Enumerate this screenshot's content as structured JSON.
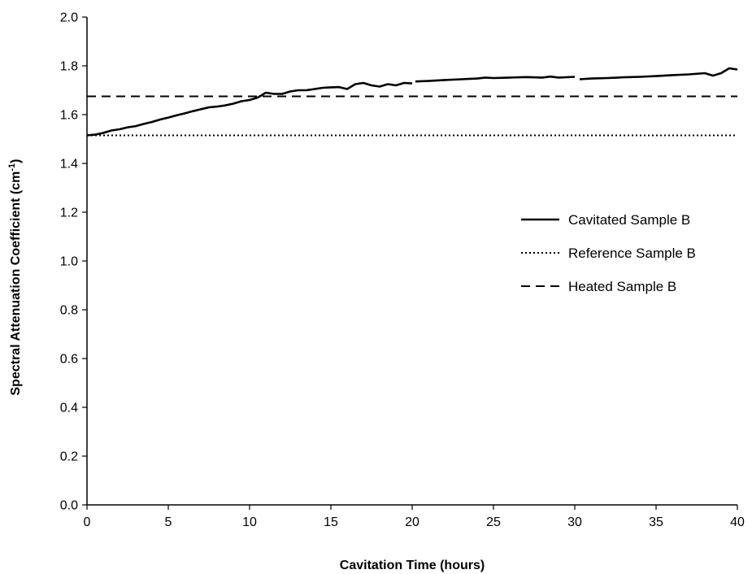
{
  "chart_data": {
    "type": "line",
    "title": "",
    "xlabel": "Cavitation Time (hours)",
    "ylabel_main": "Spectral Attenuation Coefficient (cm",
    "ylabel_sup": "-1",
    "ylabel_close": ")",
    "xlim": [
      0,
      40
    ],
    "ylim": [
      0,
      2.0
    ],
    "x_ticks": [
      "0",
      "5",
      "10",
      "15",
      "20",
      "25",
      "30",
      "35",
      "40"
    ],
    "y_ticks": [
      "0.0",
      "0.2",
      "0.4",
      "0.6",
      "0.8",
      "1.0",
      "1.2",
      "1.4",
      "1.6",
      "1.8",
      "2.0"
    ],
    "grid": false,
    "legend_position": "right",
    "series": [
      {
        "name": "Cavitated Sample B",
        "style": "solid",
        "color": "#000000",
        "segments": [
          [
            [
              0,
              1.515
            ],
            [
              0.5,
              1.518
            ],
            [
              1,
              1.525
            ],
            [
              1.5,
              1.535
            ],
            [
              2,
              1.54
            ],
            [
              2.5,
              1.548
            ],
            [
              3,
              1.553
            ],
            [
              3.5,
              1.562
            ],
            [
              4,
              1.57
            ],
            [
              4.5,
              1.58
            ],
            [
              5,
              1.588
            ],
            [
              5.5,
              1.597
            ],
            [
              6,
              1.605
            ],
            [
              6.5,
              1.614
            ],
            [
              7,
              1.622
            ],
            [
              7.5,
              1.63
            ],
            [
              8,
              1.633
            ],
            [
              8.5,
              1.638
            ],
            [
              9,
              1.645
            ],
            [
              9.5,
              1.655
            ],
            [
              10,
              1.66
            ],
            [
              10.5,
              1.67
            ],
            [
              11,
              1.69
            ],
            [
              11.5,
              1.685
            ],
            [
              12,
              1.685
            ],
            [
              12.5,
              1.695
            ],
            [
              13,
              1.7
            ],
            [
              13.5,
              1.7
            ],
            [
              14,
              1.705
            ],
            [
              14.5,
              1.71
            ],
            [
              15,
              1.712
            ],
            [
              15.5,
              1.713
            ],
            [
              16,
              1.705
            ],
            [
              16.5,
              1.725
            ],
            [
              17,
              1.73
            ],
            [
              17.5,
              1.72
            ],
            [
              18,
              1.715
            ],
            [
              18.5,
              1.725
            ],
            [
              19,
              1.72
            ],
            [
              19.5,
              1.73
            ],
            [
              20,
              1.728
            ]
          ],
          [
            [
              20.2,
              1.736
            ],
            [
              21,
              1.738
            ],
            [
              22,
              1.742
            ],
            [
              23,
              1.745
            ],
            [
              24,
              1.748
            ],
            [
              24.5,
              1.752
            ],
            [
              25,
              1.75
            ],
            [
              26,
              1.752
            ],
            [
              27,
              1.754
            ],
            [
              28,
              1.752
            ],
            [
              28.5,
              1.756
            ],
            [
              29,
              1.752
            ],
            [
              30,
              1.755
            ]
          ],
          [
            [
              30.3,
              1.745
            ],
            [
              31,
              1.748
            ],
            [
              32,
              1.75
            ],
            [
              33,
              1.753
            ],
            [
              34,
              1.755
            ],
            [
              35,
              1.758
            ],
            [
              36,
              1.762
            ],
            [
              37,
              1.765
            ],
            [
              38,
              1.77
            ],
            [
              38.5,
              1.76
            ],
            [
              39,
              1.77
            ],
            [
              39.5,
              1.79
            ],
            [
              40,
              1.785
            ]
          ]
        ]
      },
      {
        "name": "Reference Sample B",
        "style": "dotted",
        "color": "#000000",
        "x": [
          0,
          40
        ],
        "values": [
          1.515,
          1.515
        ]
      },
      {
        "name": "Heated Sample B",
        "style": "dashed",
        "color": "#000000",
        "x": [
          0,
          40
        ],
        "values": [
          1.675,
          1.675
        ]
      }
    ]
  }
}
